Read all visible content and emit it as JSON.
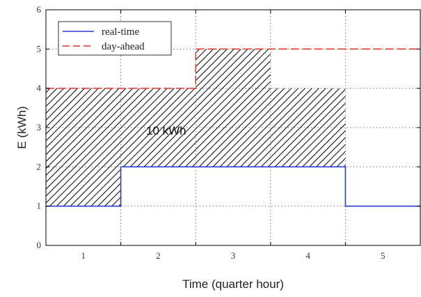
{
  "chart_data": {
    "type": "line",
    "xlabel": "Time (quarter hour)",
    "ylabel": "E (kWh)",
    "x_tick_labels": [
      "1",
      "2",
      "3",
      "4",
      "5"
    ],
    "ylim": [
      0,
      6
    ],
    "y_ticks": [
      "0",
      "1",
      "2",
      "3",
      "4",
      "5",
      "6"
    ],
    "grid": true,
    "legend_position": "top-left",
    "series": [
      {
        "name": "real-time",
        "style": "solid",
        "color": "#2b3bd4",
        "values": [
          1,
          2,
          2,
          2,
          1
        ]
      },
      {
        "name": "day-ahead",
        "style": "dashed",
        "color": "#e0504a",
        "values": [
          4,
          4,
          5,
          5,
          5
        ]
      }
    ],
    "shaded_region": {
      "between": [
        "real-time",
        "upper boundary"
      ],
      "upper_boundary": [
        4,
        4,
        5,
        4,
        null
      ]
    },
    "annotations": [
      {
        "text": "10 kWh"
      }
    ]
  }
}
